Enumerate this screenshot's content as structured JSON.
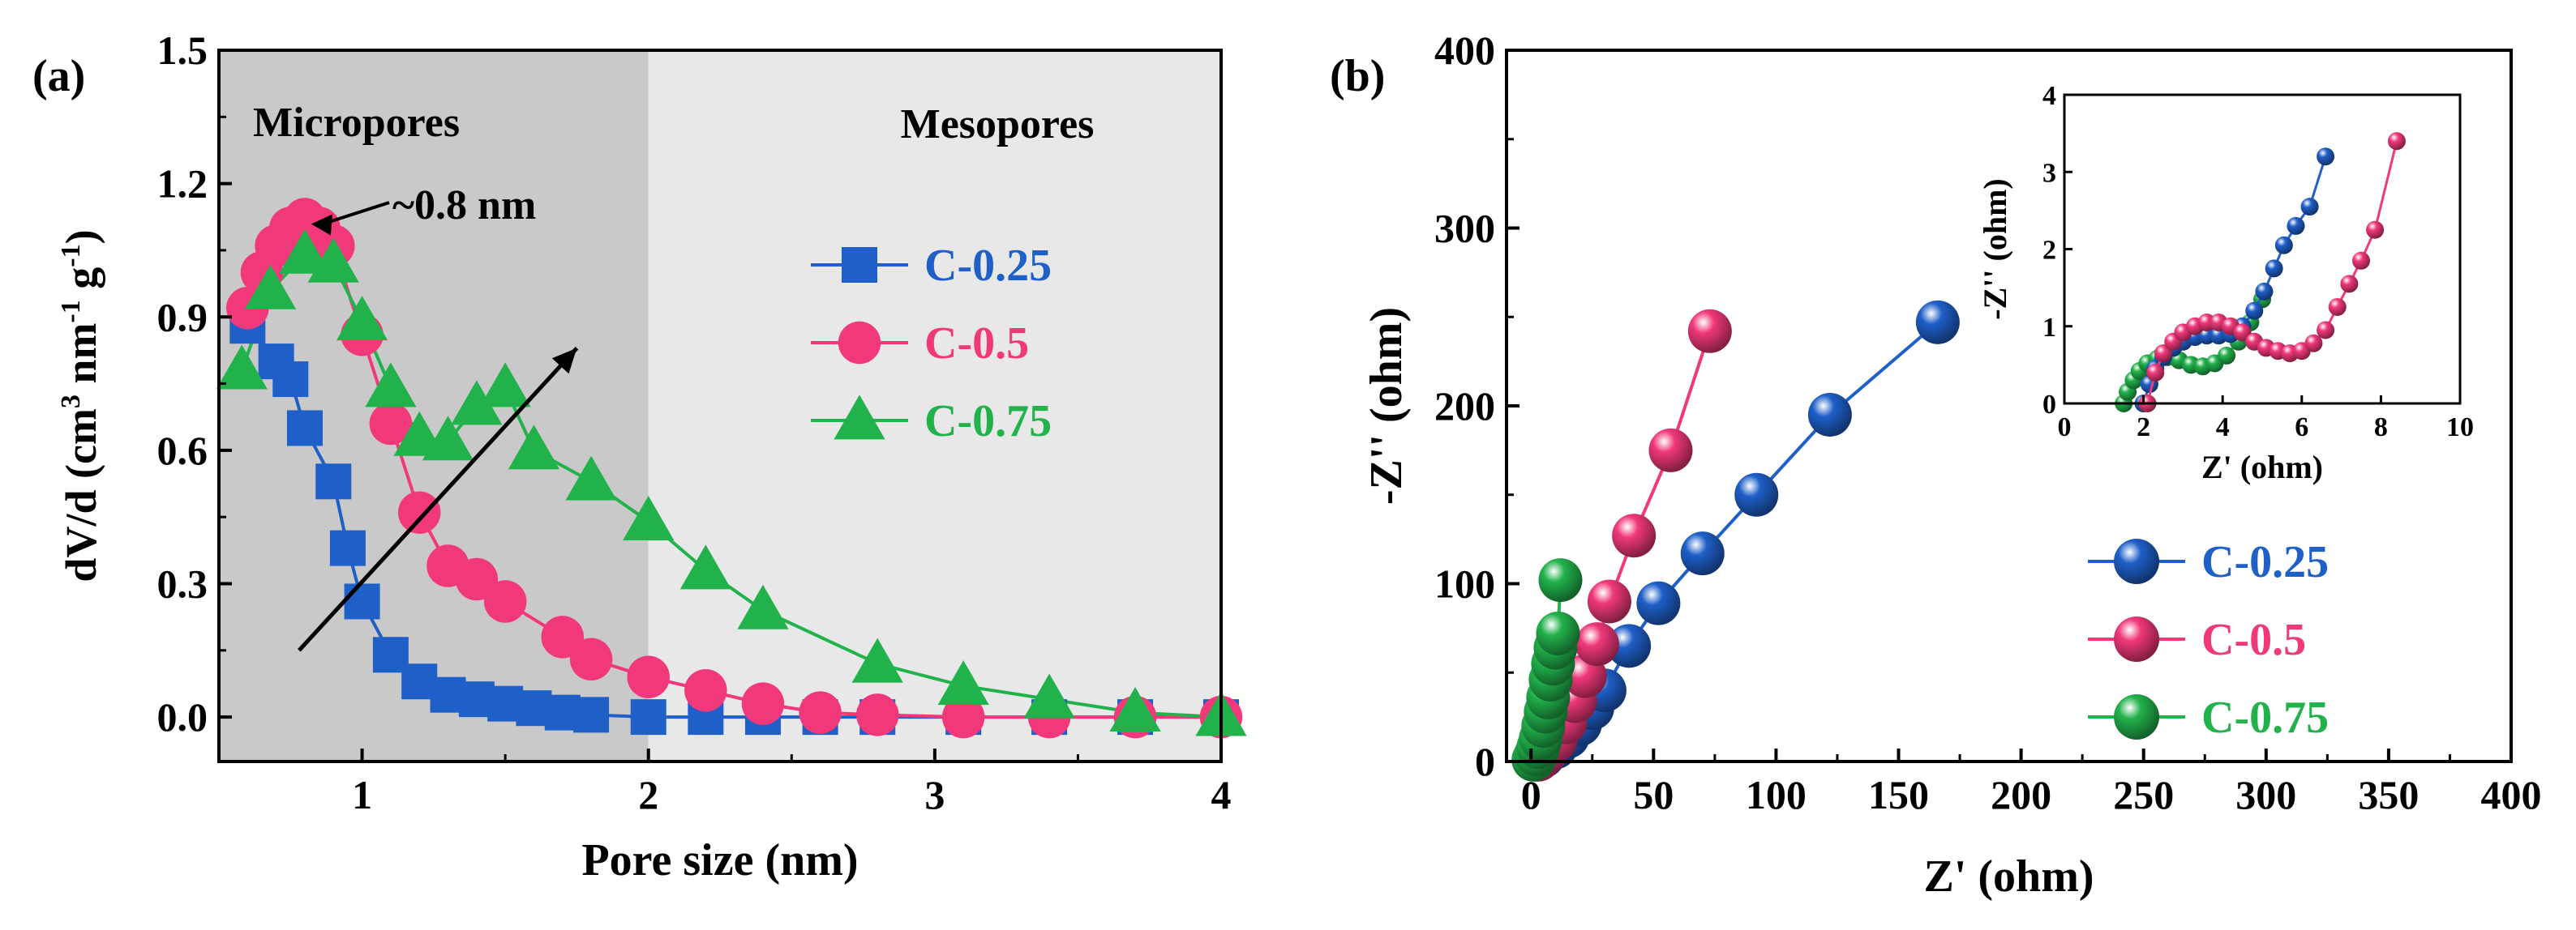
{
  "figure": {
    "panel_a_label": "(a)",
    "panel_b_label": "(b)"
  },
  "colors": {
    "C-0.25": "#1f5fc8",
    "C-0.5": "#f0387a",
    "C-0.75": "#22b24c",
    "micropore_shade": "#c9c9c9",
    "mesopore_shade": "#e8e8e8"
  },
  "chart_data": [
    {
      "id": "pore_size_distribution",
      "type": "line",
      "xlabel": "Pore size (nm)",
      "ylabel_parts": [
        "dV/d (cm",
        "3",
        " nm",
        "-1",
        " g",
        "-1",
        ")"
      ],
      "xlim": [
        0.5,
        4
      ],
      "ylim": [
        -0.1,
        1.5
      ],
      "xticks": [
        1,
        2,
        3,
        4
      ],
      "yticks": [
        0.0,
        0.3,
        0.6,
        0.9,
        1.2,
        1.5
      ],
      "ytick_labels": [
        "0.0",
        "0.3",
        "0.6",
        "0.9",
        "1.2",
        "1.5"
      ],
      "regions": [
        {
          "label": "Micropores",
          "x_from": 0.5,
          "x_to": 2.0
        },
        {
          "label": "Mesopores",
          "x_from": 2.0,
          "x_to": 4.0
        }
      ],
      "annotations": [
        {
          "text": "~0.8 nm",
          "points_to": [
            0.8,
            1.12
          ]
        },
        {
          "text": "",
          "arrow_from": [
            0.78,
            0.15
          ],
          "arrow_to": [
            1.75,
            0.83
          ]
        }
      ],
      "legend": "center-right",
      "series": [
        {
          "name": "C-0.25",
          "marker": "square",
          "x": [
            0.6,
            0.7,
            0.75,
            0.8,
            0.9,
            0.95,
            1.0,
            1.1,
            1.2,
            1.3,
            1.4,
            1.5,
            1.6,
            1.7,
            1.8,
            2.0,
            2.2,
            2.4,
            2.6,
            2.8,
            3.1,
            3.4,
            3.7,
            4.0
          ],
          "y": [
            0.88,
            0.8,
            0.76,
            0.65,
            0.53,
            0.38,
            0.26,
            0.14,
            0.08,
            0.05,
            0.04,
            0.03,
            0.02,
            0.01,
            0.005,
            0.0,
            0.0,
            0.0,
            0.0,
            0.0,
            0.0,
            0.0,
            0.0,
            0.0
          ]
        },
        {
          "name": "C-0.5",
          "marker": "circle",
          "x": [
            0.6,
            0.65,
            0.7,
            0.75,
            0.8,
            0.85,
            0.9,
            1.0,
            1.1,
            1.2,
            1.3,
            1.4,
            1.5,
            1.7,
            1.8,
            2.0,
            2.2,
            2.4,
            2.6,
            2.8,
            3.1,
            3.4,
            3.7,
            4.0
          ],
          "y": [
            0.92,
            1.0,
            1.06,
            1.1,
            1.12,
            1.1,
            1.06,
            0.86,
            0.66,
            0.46,
            0.34,
            0.31,
            0.26,
            0.18,
            0.13,
            0.09,
            0.06,
            0.03,
            0.01,
            0.005,
            0.0,
            0.0,
            0.0,
            0.0
          ]
        },
        {
          "name": "C-0.75",
          "marker": "triangle",
          "x": [
            0.58,
            0.68,
            0.8,
            0.9,
            1.0,
            1.1,
            1.2,
            1.3,
            1.4,
            1.5,
            1.6,
            1.8,
            2.0,
            2.2,
            2.4,
            2.8,
            3.1,
            3.4,
            3.7,
            4.0
          ],
          "y": [
            0.78,
            0.96,
            1.04,
            1.02,
            0.89,
            0.74,
            0.63,
            0.62,
            0.7,
            0.74,
            0.6,
            0.53,
            0.44,
            0.33,
            0.24,
            0.12,
            0.07,
            0.04,
            0.01,
            0.0
          ]
        }
      ]
    },
    {
      "id": "nyquist_plot",
      "type": "line",
      "xlabel": "Z' (ohm)",
      "ylabel": "-Z'' (ohm)",
      "xlim": [
        -10,
        400
      ],
      "ylim": [
        0,
        400
      ],
      "xticks": [
        0,
        50,
        100,
        150,
        200,
        250,
        300,
        350,
        400
      ],
      "yticks": [
        0,
        100,
        200,
        300,
        400
      ],
      "legend": "bottom-right",
      "series": [
        {
          "name": "C-0.25",
          "marker": "sphere",
          "x": [
            2,
            5,
            10,
            15,
            20,
            25,
            30,
            40,
            52,
            70,
            92,
            122,
            166
          ],
          "y": [
            1,
            3,
            8,
            14,
            21,
            30,
            40,
            65,
            89,
            117,
            150,
            195,
            247
          ]
        },
        {
          "name": "C-0.5",
          "marker": "sphere",
          "x": [
            3,
            6,
            10,
            14,
            18,
            22,
            27,
            32,
            42,
            57,
            73
          ],
          "y": [
            1,
            5,
            12,
            22,
            34,
            48,
            66,
            90,
            127,
            175,
            242
          ]
        },
        {
          "name": "C-0.75",
          "marker": "sphere",
          "x": [
            1,
            2,
            3,
            4,
            5,
            6,
            7,
            8,
            9,
            10,
            11,
            12
          ],
          "y": [
            1,
            4,
            8,
            13,
            20,
            28,
            36,
            46,
            55,
            64,
            72,
            102
          ]
        }
      ]
    },
    {
      "id": "nyquist_inset",
      "type": "line",
      "xlabel": "Z' (ohm)",
      "ylabel": "-Z'' (ohm)",
      "xlim": [
        0,
        10
      ],
      "ylim": [
        0,
        4
      ],
      "xticks": [
        0,
        2,
        4,
        6,
        8,
        10
      ],
      "yticks": [
        0,
        1,
        2,
        3,
        4
      ],
      "series": [
        {
          "name": "C-0.25",
          "marker": "sphere",
          "x": [
            2.0,
            2.15,
            2.3,
            2.5,
            2.75,
            3.0,
            3.3,
            3.6,
            3.9,
            4.2,
            4.5,
            4.8,
            5.05,
            5.3,
            5.55,
            5.85,
            6.2,
            6.6
          ],
          "y": [
            0.0,
            0.25,
            0.45,
            0.6,
            0.72,
            0.8,
            0.86,
            0.88,
            0.88,
            0.9,
            1.0,
            1.2,
            1.45,
            1.75,
            2.05,
            2.3,
            2.55,
            3.2
          ]
        },
        {
          "name": "C-0.5",
          "marker": "sphere",
          "x": [
            2.1,
            2.3,
            2.5,
            2.75,
            3.0,
            3.3,
            3.6,
            3.9,
            4.2,
            4.5,
            4.8,
            5.1,
            5.4,
            5.7,
            6.0,
            6.3,
            6.6,
            6.9,
            7.2,
            7.5,
            7.85,
            8.4
          ],
          "y": [
            0.0,
            0.4,
            0.65,
            0.8,
            0.92,
            1.0,
            1.05,
            1.05,
            1.0,
            0.92,
            0.8,
            0.72,
            0.68,
            0.65,
            0.68,
            0.78,
            0.95,
            1.25,
            1.55,
            1.85,
            2.25,
            3.4
          ]
        },
        {
          "name": "C-0.75",
          "marker": "sphere",
          "x": [
            1.5,
            1.6,
            1.75,
            1.9,
            2.1,
            2.35,
            2.6,
            2.9,
            3.2,
            3.5,
            3.8,
            4.1,
            4.4,
            4.7,
            5.0
          ],
          "y": [
            0.0,
            0.15,
            0.3,
            0.42,
            0.52,
            0.58,
            0.6,
            0.56,
            0.5,
            0.48,
            0.52,
            0.62,
            0.8,
            1.05,
            1.35
          ]
        }
      ]
    }
  ]
}
